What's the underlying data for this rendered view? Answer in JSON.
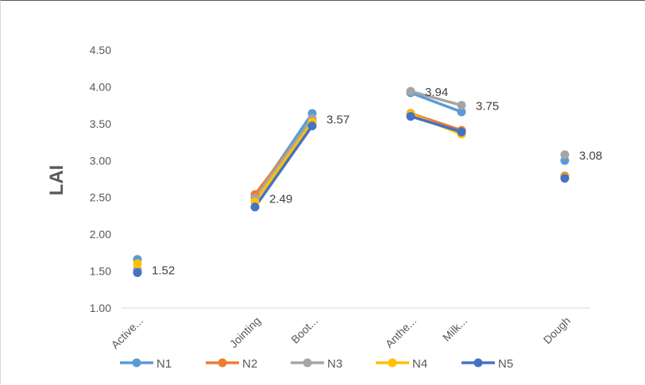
{
  "chart_data": {
    "type": "line",
    "title": "",
    "xlabel": "",
    "ylabel": "LAI",
    "ylim": [
      1.0,
      4.5
    ],
    "yticks": [
      "1.00",
      "1.50",
      "2.00",
      "2.50",
      "3.00",
      "3.50",
      "4.00",
      "4.50"
    ],
    "grid": false,
    "legend_position": "bottom",
    "categories": [
      "Active...",
      "Jointing",
      "Boot...",
      "Anthe...",
      "Milk...",
      "Dough"
    ],
    "series": [
      {
        "name": "N1",
        "color": "#5B9BD5",
        "values": [
          1.66,
          2.5,
          3.64,
          3.92,
          3.66,
          3.0
        ]
      },
      {
        "name": "N2",
        "color": "#ED7D31",
        "values": [
          1.52,
          2.54,
          3.55,
          3.64,
          3.41,
          2.79
        ]
      },
      {
        "name": "N3",
        "color": "#A5A5A5",
        "values": [
          1.52,
          2.49,
          3.57,
          3.94,
          3.75,
          3.08
        ]
      },
      {
        "name": "N4",
        "color": "#FFC000",
        "values": [
          1.6,
          2.44,
          3.52,
          3.63,
          3.36,
          2.77
        ]
      },
      {
        "name": "N5",
        "color": "#4472C4",
        "values": [
          1.48,
          2.37,
          3.47,
          3.6,
          3.39,
          2.76
        ]
      }
    ],
    "data_labels": [
      {
        "category": "Active...",
        "text": "1.52"
      },
      {
        "category": "Jointing",
        "text": "2.49"
      },
      {
        "category": "Boot...",
        "text": "3.57"
      },
      {
        "category": "Anthe...",
        "text": "3.94"
      },
      {
        "category": "Milk...",
        "text": "3.75"
      },
      {
        "category": "Dough",
        "text": "3.08"
      }
    ],
    "line_segments": [
      [
        1,
        2
      ],
      [
        3,
        4
      ]
    ]
  }
}
